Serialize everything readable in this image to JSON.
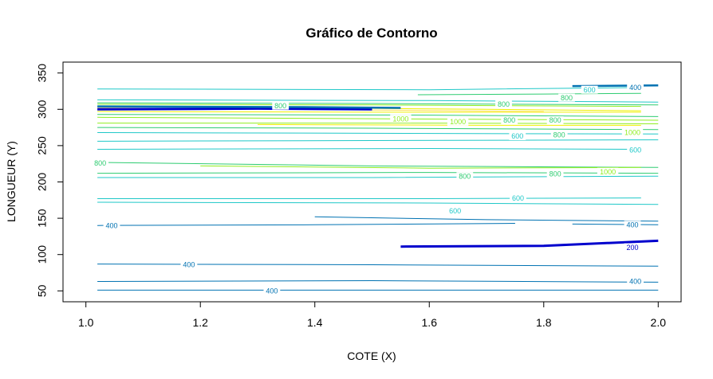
{
  "chart_data": {
    "type": "contour",
    "title": "Gráfico de Contorno",
    "xlabel": "COTE (X)",
    "ylabel": "LONGUEUR (Y)",
    "xlim": [
      0.96,
      2.04
    ],
    "ylim": [
      35,
      365
    ],
    "x_ticks": [
      "1.0",
      "1.2",
      "1.4",
      "1.6",
      "1.8",
      "2.0"
    ],
    "y_ticks": [
      "50",
      "100",
      "150",
      "200",
      "250",
      "300",
      "350"
    ],
    "grid": false,
    "legend": "none",
    "level_colors": {
      "200": "#0000cd",
      "400": "#0072b2",
      "600": "#1fc8c8",
      "800": "#2ecc71",
      "1000": "#90ee20",
      "1200": "#f0f000",
      "1400": "#ffe060"
    },
    "contours": [
      {
        "level": 400,
        "points": [
          [
            1.02,
            51
          ],
          [
            2.0,
            51
          ]
        ]
      },
      {
        "level": 400,
        "points": [
          [
            1.02,
            63
          ],
          [
            1.5,
            64
          ],
          [
            2.0,
            62
          ]
        ]
      },
      {
        "level": 400,
        "points": [
          [
            1.02,
            87
          ],
          [
            1.5,
            86
          ],
          [
            2.0,
            84
          ]
        ]
      },
      {
        "level": 200,
        "points": [
          [
            1.55,
            111
          ],
          [
            1.8,
            112
          ],
          [
            2.0,
            119
          ]
        ]
      },
      {
        "level": 400,
        "points": [
          [
            1.02,
            140
          ],
          [
            1.4,
            141
          ],
          [
            1.75,
            143
          ]
        ]
      },
      {
        "level": 400,
        "points": [
          [
            1.4,
            152
          ],
          [
            1.7,
            148
          ],
          [
            2.0,
            146
          ]
        ]
      },
      {
        "level": 400,
        "points": [
          [
            1.85,
            142
          ],
          [
            2.0,
            141
          ]
        ]
      },
      {
        "level": 600,
        "points": [
          [
            1.02,
            172
          ],
          [
            1.6,
            171
          ],
          [
            2.0,
            169
          ]
        ]
      },
      {
        "level": 600,
        "points": [
          [
            1.02,
            177
          ],
          [
            1.6,
            177
          ],
          [
            1.97,
            178
          ]
        ]
      },
      {
        "level": 600,
        "points": [
          [
            1.02,
            206
          ],
          [
            1.5,
            206
          ],
          [
            2.0,
            208
          ]
        ]
      },
      {
        "level": 800,
        "points": [
          [
            1.02,
            227
          ],
          [
            1.5,
            222
          ],
          [
            2.0,
            220
          ]
        ]
      },
      {
        "level": 1000,
        "points": [
          [
            1.2,
            222
          ],
          [
            1.6,
            219
          ],
          [
            1.97,
            220
          ]
        ]
      },
      {
        "level": 800,
        "points": [
          [
            1.02,
            212
          ],
          [
            1.6,
            213
          ],
          [
            2.0,
            212
          ]
        ]
      },
      {
        "level": 600,
        "points": [
          [
            1.02,
            245
          ],
          [
            1.6,
            246
          ],
          [
            1.97,
            245
          ]
        ]
      },
      {
        "level": 600,
        "points": [
          [
            1.02,
            256
          ],
          [
            1.5,
            257
          ],
          [
            2.0,
            258
          ]
        ]
      },
      {
        "level": 600,
        "points": [
          [
            1.02,
            268
          ],
          [
            1.5,
            267
          ],
          [
            2.0,
            266
          ]
        ]
      },
      {
        "level": 800,
        "points": [
          [
            1.02,
            275
          ],
          [
            1.5,
            274
          ],
          [
            2.0,
            272
          ]
        ]
      },
      {
        "level": 1000,
        "points": [
          [
            1.02,
            281
          ],
          [
            1.6,
            281
          ],
          [
            2.0,
            280
          ]
        ]
      },
      {
        "level": 1200,
        "points": [
          [
            1.3,
            279
          ],
          [
            1.7,
            278
          ],
          [
            1.97,
            278
          ]
        ]
      },
      {
        "level": 1000,
        "points": [
          [
            1.02,
            289
          ],
          [
            1.5,
            287
          ],
          [
            2.0,
            285
          ]
        ]
      },
      {
        "level": 800,
        "points": [
          [
            1.02,
            293
          ],
          [
            1.6,
            292
          ],
          [
            2.0,
            290
          ]
        ]
      },
      {
        "level": 1200,
        "points": [
          [
            1.02,
            297
          ],
          [
            1.5,
            296
          ],
          [
            1.97,
            296
          ]
        ]
      },
      {
        "level": 1400,
        "points": [
          [
            1.02,
            302
          ],
          [
            1.5,
            299
          ],
          [
            1.8,
            297
          ]
        ]
      },
      {
        "level": 1200,
        "points": [
          [
            1.4,
            302
          ],
          [
            1.7,
            300
          ],
          [
            1.97,
            298
          ]
        ]
      },
      {
        "level": 1000,
        "points": [
          [
            1.02,
            307
          ],
          [
            1.5,
            306
          ],
          [
            1.97,
            304
          ]
        ]
      },
      {
        "level": 800,
        "points": [
          [
            1.02,
            309
          ],
          [
            1.5,
            308
          ],
          [
            2.0,
            306
          ]
        ]
      },
      {
        "level": 600,
        "points": [
          [
            1.02,
            313
          ],
          [
            1.6,
            312
          ],
          [
            2.0,
            310
          ]
        ]
      },
      {
        "level": 800,
        "points": [
          [
            1.58,
            320
          ],
          [
            1.8,
            321
          ],
          [
            1.97,
            322
          ]
        ]
      },
      {
        "level": 600,
        "points": [
          [
            1.02,
            328
          ],
          [
            1.6,
            327
          ],
          [
            1.97,
            330
          ]
        ]
      },
      {
        "level": 400,
        "points": [
          [
            1.85,
            332
          ],
          [
            2.0,
            333
          ]
        ]
      },
      {
        "level": 200,
        "points": [
          [
            1.02,
            300
          ],
          [
            1.3,
            301
          ],
          [
            1.5,
            300
          ]
        ]
      },
      {
        "level": 400,
        "points": [
          [
            1.02,
            304
          ],
          [
            1.4,
            303
          ],
          [
            1.55,
            302
          ]
        ]
      }
    ],
    "contour_labels": [
      {
        "text": "400",
        "x": 1.325,
        "y": 50
      },
      {
        "text": "400",
        "x": 1.96,
        "y": 63
      },
      {
        "text": "400",
        "x": 1.18,
        "y": 86
      },
      {
        "text": "200",
        "x": 1.955,
        "y": 110
      },
      {
        "text": "400",
        "x": 1.045,
        "y": 140
      },
      {
        "text": "400",
        "x": 1.955,
        "y": 141
      },
      {
        "text": "600",
        "x": 1.645,
        "y": 160
      },
      {
        "text": "600",
        "x": 1.755,
        "y": 178
      },
      {
        "text": "800",
        "x": 1.662,
        "y": 208
      },
      {
        "text": "800",
        "x": 1.82,
        "y": 211
      },
      {
        "text": "1000",
        "x": 1.912,
        "y": 214
      },
      {
        "text": "800",
        "x": 1.025,
        "y": 226
      },
      {
        "text": "600",
        "x": 1.96,
        "y": 244
      },
      {
        "text": "600",
        "x": 1.754,
        "y": 263
      },
      {
        "text": "800",
        "x": 1.827,
        "y": 265
      },
      {
        "text": "1000",
        "x": 1.955,
        "y": 268
      },
      {
        "text": "1000",
        "x": 1.65,
        "y": 283
      },
      {
        "text": "800",
        "x": 1.74,
        "y": 285
      },
      {
        "text": "800",
        "x": 1.82,
        "y": 285
      },
      {
        "text": "1000",
        "x": 1.55,
        "y": 287
      },
      {
        "text": "800",
        "x": 1.73,
        "y": 307
      },
      {
        "text": "800",
        "x": 1.84,
        "y": 316
      },
      {
        "text": "600",
        "x": 1.88,
        "y": 327
      },
      {
        "text": "400",
        "x": 1.96,
        "y": 330
      },
      {
        "text": "800",
        "x": 1.34,
        "y": 305
      }
    ]
  }
}
